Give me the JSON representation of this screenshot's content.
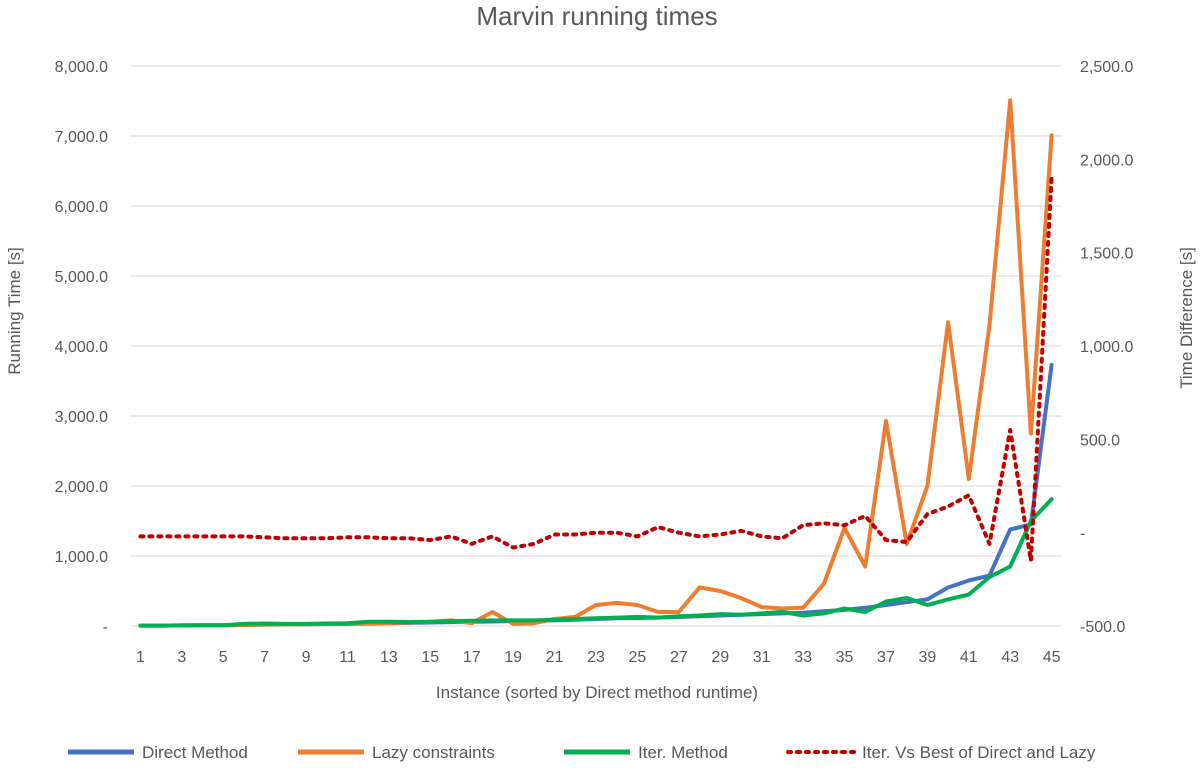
{
  "chart_data": {
    "type": "line",
    "title": "Marvin running times",
    "xlabel": "Instance (sorted by Direct method  runtime)",
    "ylabel": "Running Time  [s]",
    "y2label": "Time Difference [s]",
    "x": [
      1,
      2,
      3,
      4,
      5,
      6,
      7,
      8,
      9,
      10,
      11,
      12,
      13,
      14,
      15,
      16,
      17,
      18,
      19,
      20,
      21,
      22,
      23,
      24,
      25,
      26,
      27,
      28,
      29,
      30,
      31,
      32,
      33,
      34,
      35,
      36,
      37,
      38,
      39,
      40,
      41,
      42,
      43,
      44,
      45
    ],
    "x_tick_labels": [
      "1",
      "3",
      "5",
      "7",
      "9",
      "11",
      "13",
      "15",
      "17",
      "19",
      "21",
      "23",
      "25",
      "27",
      "29",
      "31",
      "33",
      "35",
      "37",
      "39",
      "41",
      "43",
      "45"
    ],
    "ylim": [
      0,
      8000
    ],
    "y_ticks": [
      "-",
      "1,000.0",
      "2,000.0",
      "3,000.0",
      "4,000.0",
      "5,000.0",
      "6,000.0",
      "7,000.0",
      "8,000.0"
    ],
    "y2lim": [
      -500,
      2500
    ],
    "y2_ticks": [
      "-500.0",
      "-",
      "500.0",
      "1,000.0",
      "1,500.0",
      "2,000.0",
      "2,500.0"
    ],
    "grid": true,
    "legend_position": "bottom",
    "series": [
      {
        "name": "Direct Method",
        "axis": "left",
        "color": "#4472c4",
        "style": "solid",
        "values": [
          5,
          6,
          8,
          10,
          12,
          15,
          20,
          22,
          25,
          28,
          30,
          35,
          40,
          45,
          50,
          55,
          60,
          65,
          70,
          75,
          80,
          90,
          100,
          110,
          115,
          120,
          130,
          140,
          150,
          160,
          170,
          180,
          190,
          210,
          230,
          260,
          300,
          340,
          380,
          550,
          650,
          720,
          1380,
          1450,
          3730
        ]
      },
      {
        "name": "Lazy constraints",
        "axis": "left",
        "color": "#ed7d31",
        "style": "solid",
        "values": [
          5,
          6,
          8,
          10,
          12,
          15,
          20,
          22,
          25,
          30,
          35,
          40,
          45,
          50,
          60,
          80,
          40,
          200,
          30,
          40,
          100,
          130,
          300,
          330,
          300,
          200,
          200,
          550,
          500,
          400,
          270,
          250,
          260,
          600,
          1400,
          850,
          2930,
          1170,
          2000,
          4340,
          2100,
          4300,
          7510,
          2750,
          7010
        ]
      },
      {
        "name": "Iter. Method",
        "axis": "left",
        "color": "#00b050",
        "style": "solid",
        "values": [
          5,
          6,
          8,
          10,
          12,
          30,
          35,
          30,
          30,
          35,
          40,
          60,
          60,
          55,
          60,
          70,
          75,
          80,
          80,
          80,
          90,
          100,
          110,
          120,
          130,
          120,
          140,
          150,
          170,
          160,
          180,
          200,
          150,
          180,
          250,
          200,
          350,
          400,
          300,
          380,
          450,
          700,
          850,
          1500,
          1810
        ]
      },
      {
        "name": "Iter. Vs Best of Direct and Lazy",
        "axis": "right",
        "color": "#c00000",
        "style": "dotted",
        "values": [
          -20,
          -20,
          -20,
          -20,
          -20,
          -20,
          -25,
          -30,
          -30,
          -30,
          -25,
          -25,
          -30,
          -30,
          -40,
          -20,
          -60,
          -20,
          -80,
          -60,
          -10,
          -10,
          0,
          0,
          -20,
          30,
          0,
          -20,
          -10,
          10,
          -20,
          -30,
          40,
          50,
          40,
          90,
          -40,
          -50,
          100,
          140,
          200,
          -60,
          550,
          -150,
          1900
        ]
      }
    ]
  }
}
